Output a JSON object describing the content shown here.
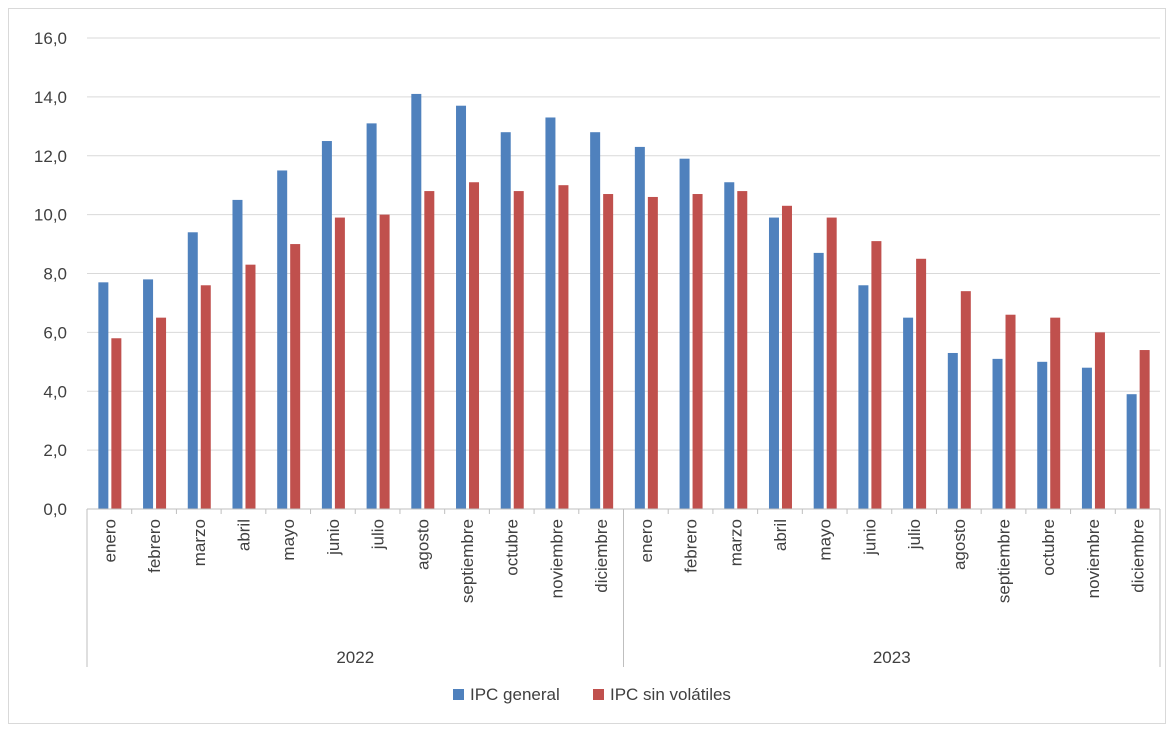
{
  "chart_data": {
    "type": "bar",
    "groups": [
      {
        "label": "2022",
        "categories": [
          "enero",
          "febrero",
          "marzo",
          "abril",
          "mayo",
          "junio",
          "julio",
          "agosto",
          "septiembre",
          "octubre",
          "noviembre",
          "diciembre"
        ]
      },
      {
        "label": "2023",
        "categories": [
          "enero",
          "febrero",
          "marzo",
          "abril",
          "mayo",
          "junio",
          "julio",
          "agosto",
          "septiembre",
          "octubre",
          "noviembre",
          "diciembre"
        ]
      }
    ],
    "series": [
      {
        "name": "IPC general",
        "color": "#4f81bd",
        "values": [
          7.7,
          7.8,
          9.4,
          10.5,
          11.5,
          12.5,
          13.1,
          14.1,
          13.7,
          12.8,
          13.3,
          12.8,
          12.3,
          11.9,
          11.1,
          9.9,
          8.7,
          7.6,
          6.5,
          5.3,
          5.1,
          5.0,
          4.8,
          3.9
        ]
      },
      {
        "name": "IPC sin volátiles",
        "color": "#c0504d",
        "values": [
          5.8,
          6.5,
          7.6,
          8.3,
          9.0,
          9.9,
          10.0,
          10.8,
          11.1,
          10.8,
          11.0,
          10.7,
          10.6,
          10.7,
          10.8,
          10.3,
          9.9,
          9.1,
          8.5,
          7.4,
          6.6,
          6.5,
          6.0,
          5.4
        ]
      }
    ],
    "y_ticks": [
      "0,0",
      "2,0",
      "4,0",
      "6,0",
      "8,0",
      "10,0",
      "12,0",
      "14,0",
      "16,0"
    ],
    "ylim": [
      0,
      16
    ],
    "grid": true,
    "legend_position": "bottom-center"
  }
}
